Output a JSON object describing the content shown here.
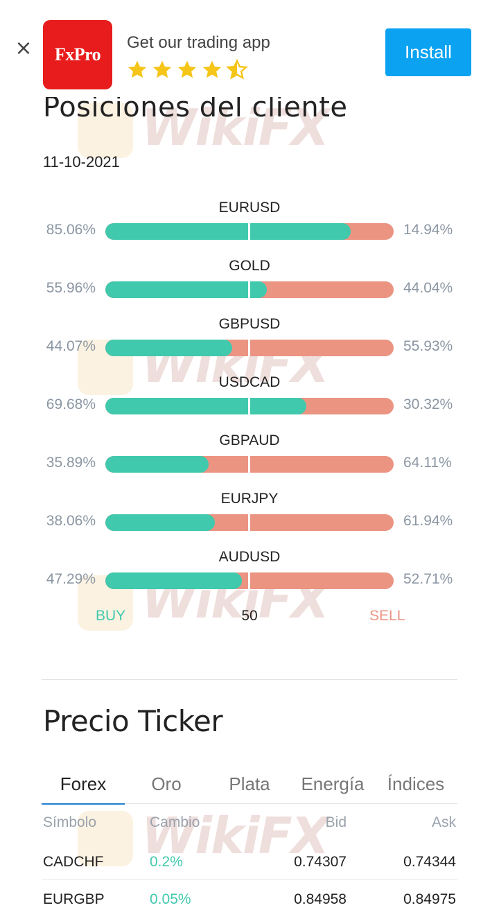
{
  "banner": {
    "close_glyph": "×",
    "logo_text": "FxPro",
    "title": "Get our trading app",
    "rating": 4.5,
    "install_label": "Install",
    "accent_color": "#0ba2f2",
    "logo_color": "#e81c1c"
  },
  "positions": {
    "title": "Posiciones del cliente",
    "date": "11-10-2021",
    "rows": [
      {
        "pair": "EURUSD",
        "buy": "85.06%",
        "sell": "14.94%",
        "buy_value": 85.06
      },
      {
        "pair": "GOLD",
        "buy": "55.96%",
        "sell": "44.04%",
        "buy_value": 55.96
      },
      {
        "pair": "GBPUSD",
        "buy": "44.07%",
        "sell": "55.93%",
        "buy_value": 44.07
      },
      {
        "pair": "USDCAD",
        "buy": "69.68%",
        "sell": "30.32%",
        "buy_value": 69.68
      },
      {
        "pair": "GBPAUD",
        "buy": "35.89%",
        "sell": "64.11%",
        "buy_value": 35.89
      },
      {
        "pair": "EURJPY",
        "buy": "38.06%",
        "sell": "61.94%",
        "buy_value": 38.06
      },
      {
        "pair": "AUDUSD",
        "buy": "47.29%",
        "sell": "52.71%",
        "buy_value": 47.29
      }
    ],
    "legend": {
      "buy": "BUY",
      "mid": "50",
      "sell": "SELL"
    },
    "buy_color": "#40c9ad",
    "sell_color": "#eb9482"
  },
  "ticker": {
    "title": "Precio Ticker",
    "tabs": [
      "Forex",
      "Oro",
      "Plata",
      "Energía",
      "Índices"
    ],
    "active_tab": 0,
    "headers": {
      "symbol": "Símbolo",
      "change": "Cambio",
      "bid": "Bid",
      "ask": "Ask"
    },
    "rows": [
      {
        "symbol": "CADCHF",
        "change": "0.2%",
        "bid": "0.74307",
        "ask": "0.74344"
      },
      {
        "symbol": "EURGBP",
        "change": "0.05%",
        "bid": "0.84958",
        "ask": "0.84975"
      }
    ]
  },
  "watermark": {
    "text": "WikiFX"
  }
}
